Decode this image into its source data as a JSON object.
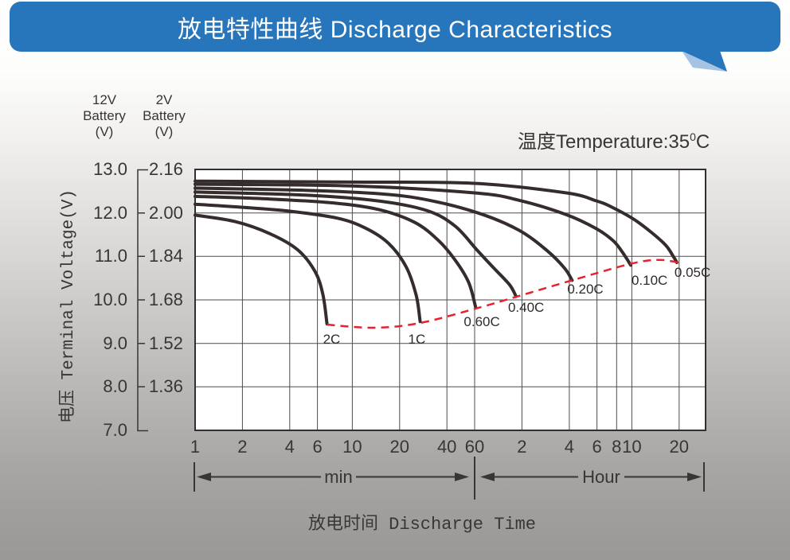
{
  "header": {
    "title": "放电特性曲线 Discharge Characteristics"
  },
  "annotations": {
    "temperature_prefix": "温度Temperature:35",
    "temperature_sup": "0",
    "temperature_suffix": "C"
  },
  "axes": {
    "y12_header": "12V\nBattery\n(V)",
    "y2_header": "2V\nBattery\n(V)",
    "y_axis_label": "电压 Terminal Voltage(V)",
    "y_rows": [
      {
        "v12": "13.0",
        "v2": "2.16",
        "volts": 13.0
      },
      {
        "v12": "12.0",
        "v2": "2.00",
        "volts": 12.0
      },
      {
        "v12": "11.0",
        "v2": "1.84",
        "volts": 11.0
      },
      {
        "v12": "10.0",
        "v2": "1.68",
        "volts": 10.0
      },
      {
        "v12": "9.0",
        "v2": "1.52",
        "volts": 9.0
      },
      {
        "v12": "8.0",
        "v2": "1.36",
        "volts": 8.0
      },
      {
        "v12": "7.0",
        "v2": "",
        "volts": 7.0
      }
    ],
    "x_ticks": [
      {
        "label": "1",
        "minutes": 1
      },
      {
        "label": "2",
        "minutes": 2
      },
      {
        "label": "4",
        "minutes": 4
      },
      {
        "label": "6",
        "minutes": 6
      },
      {
        "label": "10",
        "minutes": 10
      },
      {
        "label": "20",
        "minutes": 20
      },
      {
        "label": "40",
        "minutes": 40
      },
      {
        "label": "60",
        "minutes": 60
      },
      {
        "label": "2",
        "minutes": 120
      },
      {
        "label": "4",
        "minutes": 240
      },
      {
        "label": "6",
        "minutes": 360
      },
      {
        "label": "8",
        "minutes": 480
      },
      {
        "label": "10",
        "minutes": 600
      },
      {
        "label": "20",
        "minutes": 1200
      }
    ],
    "min_label": "min",
    "hour_label": "Hour",
    "x_axis_label": "放电时间 Discharge Time"
  },
  "chart_data": {
    "type": "line",
    "title": "放电特性曲线 Discharge Characteristics",
    "xlabel": "放电时间 Discharge Time",
    "ylabel": "电压 Terminal Voltage(V)",
    "x_scale": "log",
    "x_unit": "minutes",
    "x_range_minutes": [
      1,
      1766
    ],
    "y_axis_12v": {
      "label": "12V Battery (V)",
      "ticks": [
        13.0,
        12.0,
        11.0,
        10.0,
        9.0,
        8.0,
        7.0
      ]
    },
    "y_axis_2v": {
      "label": "2V Battery (V)",
      "ticks": [
        2.16,
        2.0,
        1.84,
        1.68,
        1.52,
        1.36
      ]
    },
    "temperature": "35°C",
    "grid": true,
    "series": [
      {
        "label": "2C",
        "points": [
          [
            1,
            11.95
          ],
          [
            1.8,
            11.8
          ],
          [
            3,
            11.52
          ],
          [
            4.5,
            11.15
          ],
          [
            5.8,
            10.65
          ],
          [
            6.5,
            10.12
          ],
          [
            6.9,
            9.45
          ]
        ]
      },
      {
        "label": "1C",
        "points": [
          [
            1,
            12.2
          ],
          [
            2,
            12.13
          ],
          [
            4,
            12.04
          ],
          [
            8,
            11.88
          ],
          [
            12,
            11.66
          ],
          [
            17,
            11.3
          ],
          [
            22,
            10.76
          ],
          [
            25.5,
            10.1
          ],
          [
            27,
            9.5
          ]
        ]
      },
      {
        "label": "0.60C",
        "points": [
          [
            1,
            12.38
          ],
          [
            3,
            12.32
          ],
          [
            8,
            12.22
          ],
          [
            15,
            12.07
          ],
          [
            25,
            11.78
          ],
          [
            35,
            11.38
          ],
          [
            45,
            10.92
          ],
          [
            55,
            10.4
          ],
          [
            61,
            9.82
          ]
        ]
      },
      {
        "label": "0.40C",
        "points": [
          [
            1,
            12.48
          ],
          [
            5,
            12.41
          ],
          [
            15,
            12.27
          ],
          [
            30,
            12.05
          ],
          [
            45,
            11.7
          ],
          [
            62,
            11.15
          ],
          [
            80,
            10.72
          ],
          [
            100,
            10.35
          ],
          [
            110,
            10.08
          ]
        ]
      },
      {
        "label": "0.20C",
        "points": [
          [
            1,
            12.57
          ],
          [
            5,
            12.52
          ],
          [
            15,
            12.44
          ],
          [
            30,
            12.3
          ],
          [
            63,
            12.0
          ],
          [
            115,
            11.6
          ],
          [
            175,
            11.12
          ],
          [
            225,
            10.72
          ],
          [
            250,
            10.45
          ]
        ]
      },
      {
        "label": "0.10C",
        "points": [
          [
            1,
            12.66
          ],
          [
            10,
            12.62
          ],
          [
            60,
            12.46
          ],
          [
            115,
            12.29
          ],
          [
            230,
            11.96
          ],
          [
            355,
            11.64
          ],
          [
            460,
            11.35
          ],
          [
            540,
            11.02
          ],
          [
            590,
            10.8
          ]
        ]
      },
      {
        "label": "0.05C",
        "points": [
          [
            1,
            12.73
          ],
          [
            10,
            12.71
          ],
          [
            60,
            12.68
          ],
          [
            230,
            12.46
          ],
          [
            355,
            12.28
          ],
          [
            450,
            12.13
          ],
          [
            650,
            11.8
          ],
          [
            960,
            11.3
          ],
          [
            1100,
            11.0
          ],
          [
            1160,
            10.86
          ]
        ]
      }
    ],
    "discharge_end_line": {
      "style": "dashed",
      "points": [
        [
          6.9,
          9.43
        ],
        [
          14,
          9.36
        ],
        [
          27,
          9.47
        ],
        [
          61,
          9.8
        ],
        [
          110,
          10.07
        ],
        [
          250,
          10.45
        ],
        [
          590,
          10.83
        ],
        [
          900,
          10.92
        ],
        [
          1250,
          10.84
        ]
      ]
    }
  },
  "colors": {
    "banner_blue": "#2775bb",
    "banner_tail_light": "#a5c3e3",
    "curve": "#352c2c",
    "dashed_red": "#e8212e",
    "grid": "#4f4b4b",
    "plot_border": "#332f2f",
    "plot_bg": "#ffffff",
    "axis_ink": "#3a3434"
  }
}
